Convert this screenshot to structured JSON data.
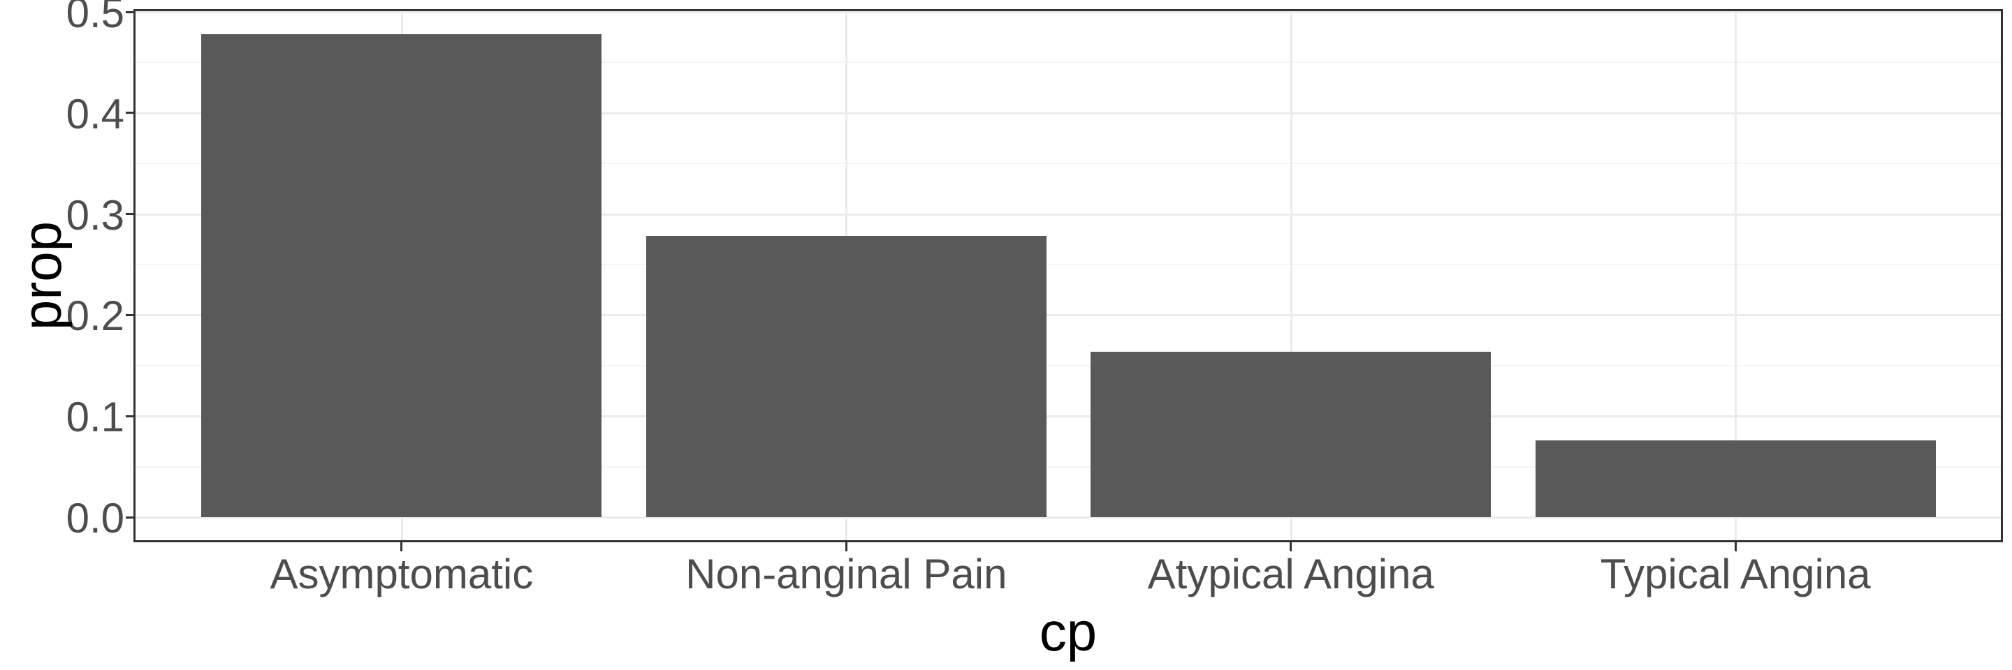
{
  "chart_data": {
    "type": "bar",
    "title": "",
    "xlabel": "cp",
    "ylabel": "prop",
    "categories": [
      "Asymptomatic",
      "Non-anginal Pain",
      "Atypical Angina",
      "Typical Angina"
    ],
    "values": [
      0.478,
      0.278,
      0.164,
      0.076
    ],
    "ylim": [
      0,
      0.5
    ],
    "ytick_labels": [
      "0.0",
      "0.1",
      "0.2",
      "0.3",
      "0.4",
      "0.5"
    ],
    "yticks": [
      0.0,
      0.1,
      0.2,
      0.3,
      0.4,
      0.5
    ],
    "yticks_minor": [
      0.05,
      0.15,
      0.25,
      0.35,
      0.45
    ],
    "grid": "horizontal major+minor, vertical major at category centers",
    "legend": "none",
    "colors": {
      "bar_fill": "#595959",
      "panel_border": "#333333",
      "tick_mark": "#333333",
      "grid_major": "#EBEBEB",
      "grid_minor": "#F5F5F5",
      "tick_label": "#4D4D4D",
      "axis_title": "#000000",
      "background": "#FFFFFF"
    }
  }
}
